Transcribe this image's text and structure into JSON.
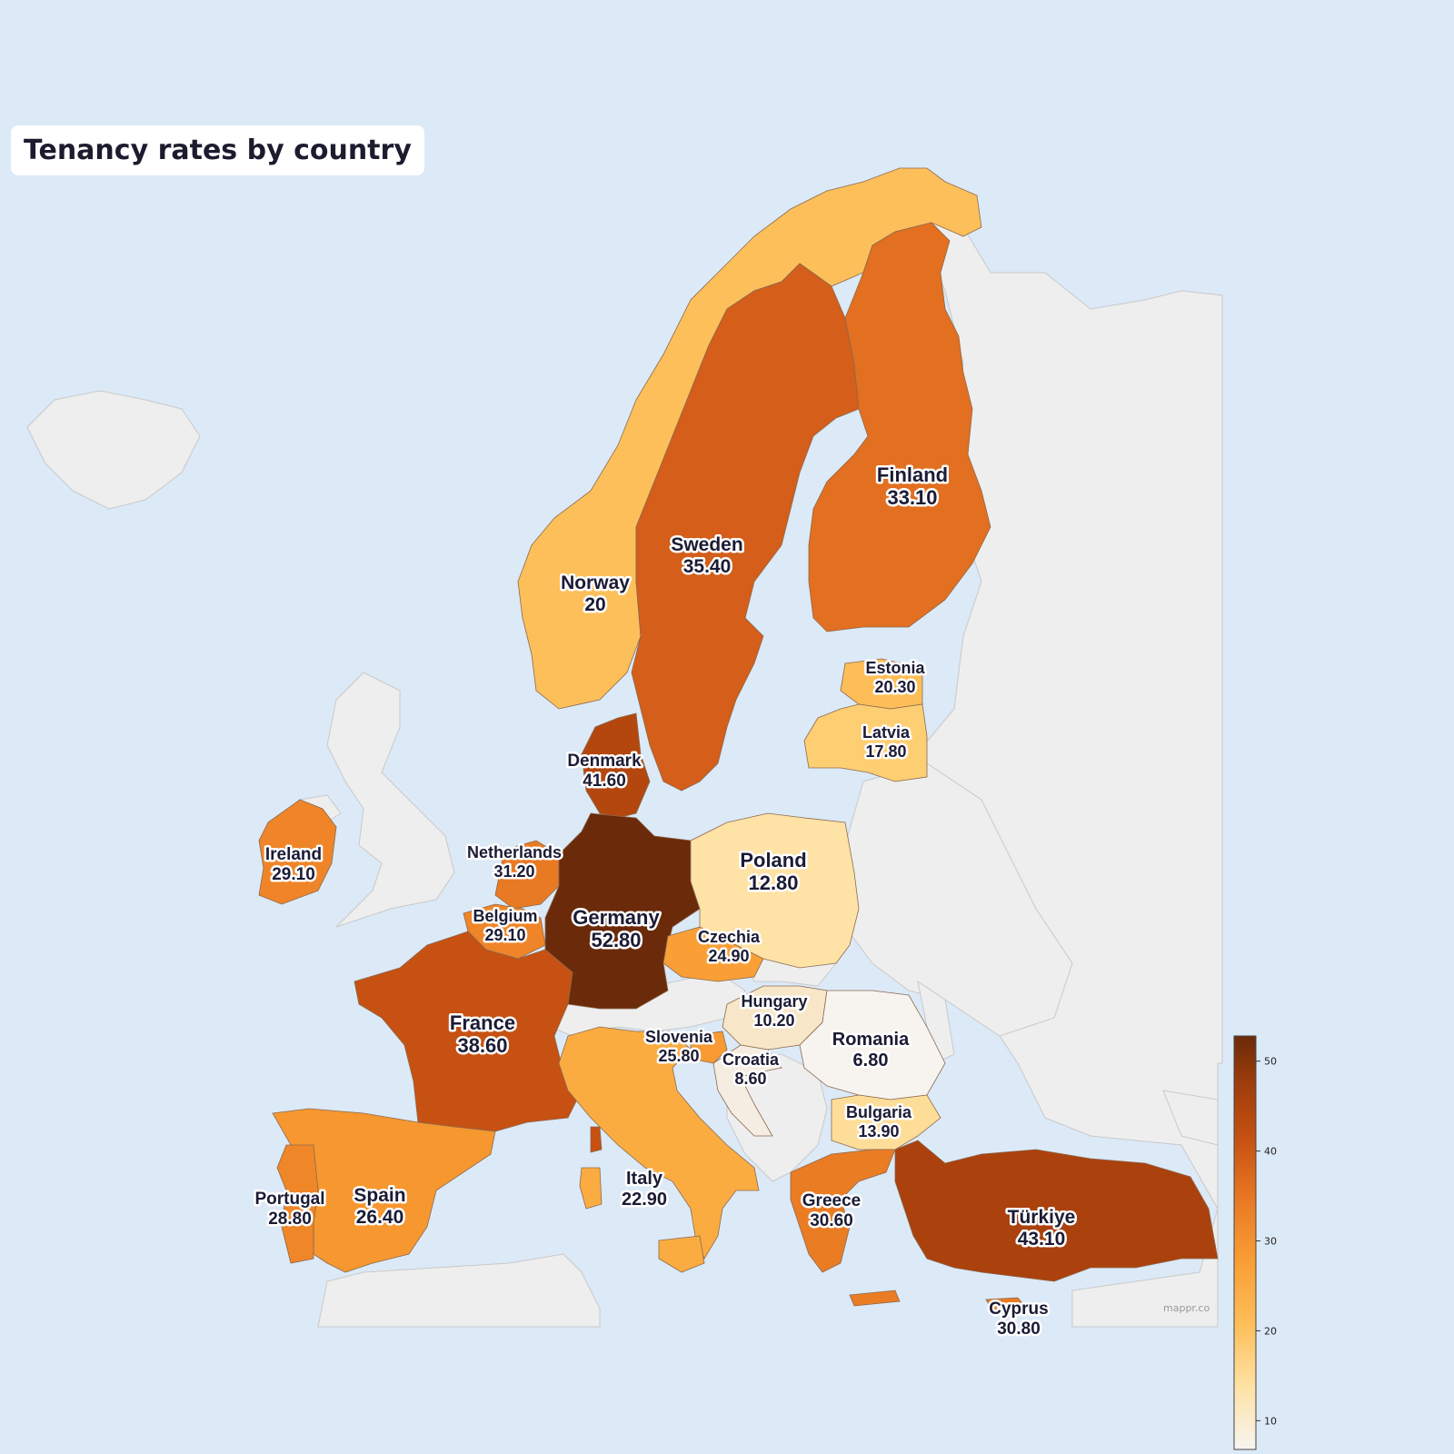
{
  "title": "Tenancy rates by country",
  "credit": "mappr.co",
  "legend": {
    "type": "colorbar",
    "min": 6.8,
    "max": 52.8,
    "ticks": [
      10,
      20,
      30,
      40,
      50
    ]
  },
  "colors": {
    "ocean": "#dce9f7",
    "land_nodata": "#eeeeee",
    "border": "#bdbdbd"
  },
  "countries": [
    {
      "id": "norway",
      "name": "Norway",
      "value_label": "20",
      "value": 20.0,
      "color": "#fdbf5a"
    },
    {
      "id": "sweden",
      "name": "Sweden",
      "value_label": "35.40",
      "value": 35.4,
      "color": "#d45e1a"
    },
    {
      "id": "finland",
      "name": "Finland",
      "value_label": "33.10",
      "value": 33.1,
      "color": "#e36f20"
    },
    {
      "id": "estonia",
      "name": "Estonia",
      "value_label": "20.30",
      "value": 20.3,
      "color": "#fdbe57"
    },
    {
      "id": "latvia",
      "name": "Latvia",
      "value_label": "17.80",
      "value": 17.8,
      "color": "#fece72"
    },
    {
      "id": "denmark",
      "name": "Denmark",
      "value_label": "41.60",
      "value": 41.6,
      "color": "#b4470e"
    },
    {
      "id": "ireland",
      "name": "Ireland",
      "value_label": "29.10",
      "value": 29.1,
      "color": "#ef8528"
    },
    {
      "id": "netherlands",
      "name": "Netherlands",
      "value_label": "31.20",
      "value": 31.2,
      "color": "#e97a24"
    },
    {
      "id": "belgium",
      "name": "Belgium",
      "value_label": "29.10",
      "value": 29.1,
      "color": "#ef8528"
    },
    {
      "id": "germany",
      "name": "Germany",
      "value_label": "52.80",
      "value": 52.8,
      "color": "#6b2a09"
    },
    {
      "id": "poland",
      "name": "Poland",
      "value_label": "12.80",
      "value": 12.8,
      "color": "#fee2a6"
    },
    {
      "id": "czechia",
      "name": "Czechia",
      "value_label": "24.90",
      "value": 24.9,
      "color": "#f99f36"
    },
    {
      "id": "france",
      "name": "France",
      "value_label": "38.60",
      "value": 38.6,
      "color": "#c65112"
    },
    {
      "id": "hungary",
      "name": "Hungary",
      "value_label": "10.20",
      "value": 10.2,
      "color": "#f8e6c8"
    },
    {
      "id": "romania",
      "name": "Romania",
      "value_label": "6.80",
      "value": 6.8,
      "color": "#f7f4f0"
    },
    {
      "id": "slovenia",
      "name": "Slovenia",
      "value_label": "25.80",
      "value": 25.8,
      "color": "#f79a34"
    },
    {
      "id": "croatia",
      "name": "Croatia",
      "value_label": "8.60",
      "value": 8.6,
      "color": "#f5ede2"
    },
    {
      "id": "bulgaria",
      "name": "Bulgaria",
      "value_label": "13.90",
      "value": 13.9,
      "color": "#fedd98"
    },
    {
      "id": "italy",
      "name": "Italy",
      "value_label": "22.90",
      "value": 22.9,
      "color": "#fbac41"
    },
    {
      "id": "spain",
      "name": "Spain",
      "value_label": "26.40",
      "value": 26.4,
      "color": "#f6972f"
    },
    {
      "id": "portugal",
      "name": "Portugal",
      "value_label": "28.80",
      "value": 28.8,
      "color": "#ef8628"
    },
    {
      "id": "greece",
      "name": "Greece",
      "value_label": "30.60",
      "value": 30.6,
      "color": "#ea7c24"
    },
    {
      "id": "turkiye",
      "name": "Türkiye",
      "value_label": "43.10",
      "value": 43.1,
      "color": "#ab410d"
    },
    {
      "id": "cyprus",
      "name": "Cyprus",
      "value_label": "30.80",
      "value": 30.8,
      "color": "#ea7c24"
    }
  ]
}
